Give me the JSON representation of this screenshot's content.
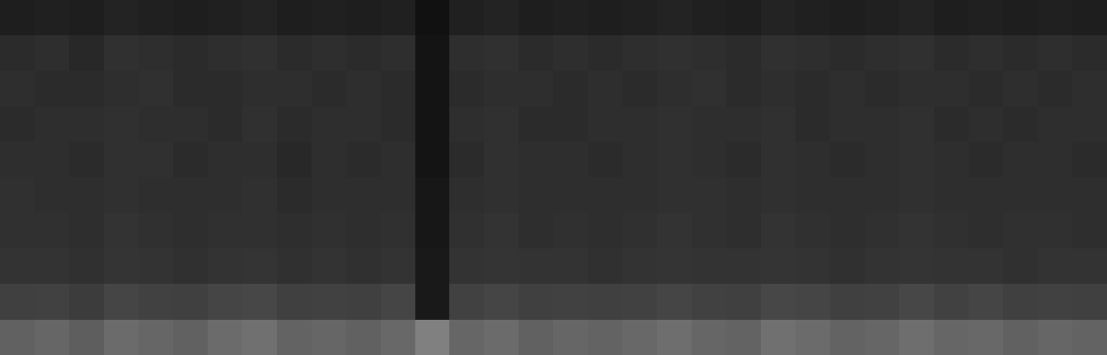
{
  "chart_data": {
    "type": "heatmap",
    "color": "gray",
    "zlim": [
      0,
      1
    ],
    "tick_labels": false,
    "grid": false,
    "cells": [
      [
        0.12,
        0.13,
        0.12,
        0.14,
        0.13,
        0.12,
        0.13,
        0.14,
        0.12,
        0.13,
        0.12,
        0.13,
        0.07,
        0.13,
        0.14,
        0.12,
        0.13,
        0.12,
        0.13,
        0.14,
        0.13,
        0.12,
        0.14,
        0.13,
        0.12,
        0.13,
        0.14,
        0.12,
        0.13,
        0.12,
        0.13,
        0.12
      ],
      [
        0.17,
        0.18,
        0.16,
        0.19,
        0.18,
        0.17,
        0.18,
        0.19,
        0.17,
        0.18,
        0.17,
        0.18,
        0.08,
        0.18,
        0.19,
        0.17,
        0.18,
        0.17,
        0.18,
        0.19,
        0.18,
        0.17,
        0.19,
        0.18,
        0.17,
        0.18,
        0.19,
        0.17,
        0.18,
        0.17,
        0.18,
        0.17
      ],
      [
        0.18,
        0.17,
        0.17,
        0.18,
        0.19,
        0.17,
        0.17,
        0.18,
        0.18,
        0.17,
        0.18,
        0.17,
        0.08,
        0.17,
        0.18,
        0.18,
        0.17,
        0.18,
        0.17,
        0.18,
        0.19,
        0.17,
        0.18,
        0.17,
        0.18,
        0.17,
        0.18,
        0.18,
        0.17,
        0.18,
        0.17,
        0.18
      ],
      [
        0.17,
        0.18,
        0.18,
        0.19,
        0.18,
        0.18,
        0.17,
        0.19,
        0.17,
        0.18,
        0.18,
        0.17,
        0.08,
        0.18,
        0.19,
        0.17,
        0.17,
        0.18,
        0.18,
        0.19,
        0.18,
        0.18,
        0.19,
        0.17,
        0.18,
        0.18,
        0.19,
        0.17,
        0.18,
        0.17,
        0.18,
        0.18
      ],
      [
        0.18,
        0.18,
        0.17,
        0.19,
        0.19,
        0.17,
        0.18,
        0.18,
        0.16,
        0.18,
        0.17,
        0.18,
        0.08,
        0.17,
        0.19,
        0.18,
        0.18,
        0.17,
        0.18,
        0.19,
        0.18,
        0.17,
        0.19,
        0.18,
        0.17,
        0.18,
        0.19,
        0.18,
        0.17,
        0.18,
        0.18,
        0.17
      ],
      [
        0.19,
        0.18,
        0.18,
        0.19,
        0.18,
        0.18,
        0.18,
        0.19,
        0.17,
        0.18,
        0.18,
        0.18,
        0.09,
        0.18,
        0.19,
        0.18,
        0.18,
        0.18,
        0.18,
        0.19,
        0.19,
        0.18,
        0.19,
        0.18,
        0.18,
        0.18,
        0.19,
        0.18,
        0.18,
        0.18,
        0.18,
        0.18
      ],
      [
        0.19,
        0.19,
        0.18,
        0.2,
        0.19,
        0.18,
        0.19,
        0.19,
        0.18,
        0.19,
        0.18,
        0.19,
        0.09,
        0.19,
        0.2,
        0.18,
        0.19,
        0.18,
        0.19,
        0.2,
        0.19,
        0.18,
        0.2,
        0.19,
        0.18,
        0.19,
        0.2,
        0.19,
        0.18,
        0.19,
        0.19,
        0.18
      ],
      [
        0.2,
        0.2,
        0.19,
        0.21,
        0.2,
        0.19,
        0.2,
        0.21,
        0.19,
        0.2,
        0.19,
        0.2,
        0.1,
        0.2,
        0.21,
        0.2,
        0.2,
        0.19,
        0.2,
        0.21,
        0.2,
        0.2,
        0.21,
        0.2,
        0.19,
        0.2,
        0.21,
        0.2,
        0.2,
        0.19,
        0.2,
        0.2
      ],
      [
        0.25,
        0.26,
        0.24,
        0.27,
        0.26,
        0.25,
        0.27,
        0.28,
        0.25,
        0.26,
        0.25,
        0.27,
        0.1,
        0.26,
        0.27,
        0.25,
        0.26,
        0.25,
        0.26,
        0.27,
        0.26,
        0.25,
        0.28,
        0.27,
        0.25,
        0.26,
        0.28,
        0.26,
        0.27,
        0.25,
        0.26,
        0.25
      ],
      [
        0.38,
        0.4,
        0.37,
        0.42,
        0.4,
        0.38,
        0.42,
        0.44,
        0.39,
        0.4,
        0.38,
        0.41,
        0.5,
        0.4,
        0.42,
        0.38,
        0.4,
        0.39,
        0.41,
        0.43,
        0.4,
        0.39,
        0.44,
        0.42,
        0.39,
        0.4,
        0.43,
        0.4,
        0.41,
        0.38,
        0.4,
        0.39
      ]
    ]
  }
}
